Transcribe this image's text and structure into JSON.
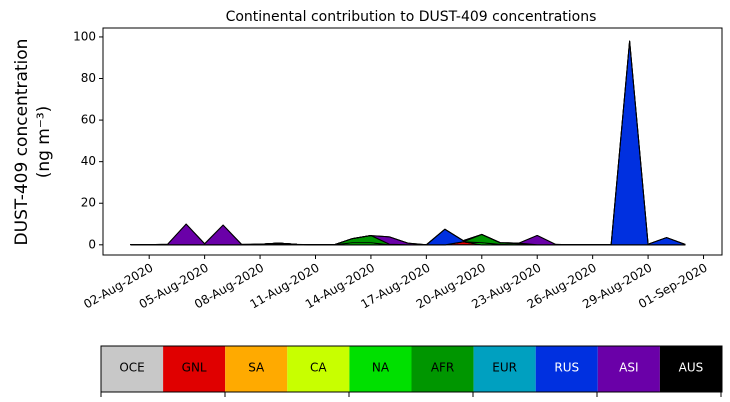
{
  "chart_data": {
    "type": "stackedarea",
    "title": "Continental contribution to DUST-409 concentrations",
    "y_label": [
      "DUST-409 concentration",
      "(ng m⁻³)"
    ],
    "x": [
      "2020-08-01",
      "2020-08-02",
      "2020-08-03",
      "2020-08-04",
      "2020-08-05",
      "2020-08-06",
      "2020-08-07",
      "2020-08-08",
      "2020-08-09",
      "2020-08-10",
      "2020-08-11",
      "2020-08-12",
      "2020-08-13",
      "2020-08-14",
      "2020-08-15",
      "2020-08-16",
      "2020-08-17",
      "2020-08-18",
      "2020-08-19",
      "2020-08-20",
      "2020-08-21",
      "2020-08-22",
      "2020-08-23",
      "2020-08-24",
      "2020-08-25",
      "2020-08-26",
      "2020-08-27",
      "2020-08-28",
      "2020-08-29",
      "2020-08-30",
      "2020-08-31"
    ],
    "xlim": [
      "2020-07-30T12:00",
      "2020-09-02"
    ],
    "xticks": [
      {
        "value": "2020-08-02",
        "label": "02-Aug-2020"
      },
      {
        "value": "2020-08-05",
        "label": "05-Aug-2020"
      },
      {
        "value": "2020-08-08",
        "label": "08-Aug-2020"
      },
      {
        "value": "2020-08-11",
        "label": "11-Aug-2020"
      },
      {
        "value": "2020-08-14",
        "label": "14-Aug-2020"
      },
      {
        "value": "2020-08-17",
        "label": "17-Aug-2020"
      },
      {
        "value": "2020-08-20",
        "label": "20-Aug-2020"
      },
      {
        "value": "2020-08-23",
        "label": "23-Aug-2020"
      },
      {
        "value": "2020-08-26",
        "label": "26-Aug-2020"
      },
      {
        "value": "2020-08-29",
        "label": "29-Aug-2020"
      },
      {
        "value": "2020-09-01",
        "label": "01-Sep-2020"
      }
    ],
    "ylim": [
      -4.9,
      104.3
    ],
    "yticks": [
      0,
      20,
      40,
      60,
      80,
      100
    ],
    "series": [
      {
        "name": "OCE",
        "color": "#c8c8c8",
        "values": [
          0.1,
          0.1,
          0,
          0,
          0,
          0,
          0,
          0,
          0,
          0,
          0,
          0,
          0,
          0,
          0,
          0,
          0,
          0,
          0,
          0,
          0,
          0,
          0,
          0,
          0,
          0,
          0,
          0,
          0,
          0,
          0
        ]
      },
      {
        "name": "GNL",
        "color": "#e00000",
        "values": [
          0,
          0,
          0,
          0,
          0,
          0,
          0,
          0,
          0,
          0,
          0,
          0,
          0,
          0,
          0,
          0,
          0,
          0,
          1.5,
          0,
          0,
          0,
          0,
          0,
          0,
          0,
          0,
          0,
          0,
          0,
          0
        ]
      },
      {
        "name": "SA",
        "color": "#ffaa00",
        "values": [
          0,
          0,
          0,
          0,
          0,
          0,
          0,
          0,
          0.3,
          0.2,
          0,
          0,
          0,
          0,
          0,
          0,
          0,
          0,
          0,
          0,
          0,
          0,
          0,
          0,
          0,
          0,
          0,
          0,
          0,
          0,
          0
        ]
      },
      {
        "name": "CA",
        "color": "#c8ff00",
        "values": [
          0,
          0,
          0,
          0,
          0,
          0,
          0,
          0.3,
          0.5,
          0,
          0,
          0,
          0,
          0,
          0,
          0,
          0,
          0,
          0,
          0,
          0,
          0,
          0,
          0,
          0,
          0,
          0,
          0,
          0,
          0,
          0
        ]
      },
      {
        "name": "NA",
        "color": "#00e000",
        "values": [
          0,
          0,
          0,
          0,
          0,
          0,
          0,
          0,
          0,
          0,
          0,
          0,
          1,
          1,
          0,
          0,
          0,
          0,
          0,
          1,
          0.2,
          0,
          0,
          0,
          0,
          0,
          0,
          0,
          0,
          0,
          0
        ]
      },
      {
        "name": "AFR",
        "color": "#009600",
        "values": [
          0,
          0,
          0,
          0,
          0,
          0,
          0,
          0,
          0,
          0,
          0,
          0,
          2,
          3.5,
          0.3,
          0,
          0,
          0,
          0,
          4,
          0.8,
          0.5,
          0,
          0,
          0,
          0,
          0,
          0,
          0,
          0,
          0
        ]
      },
      {
        "name": "EUR",
        "color": "#00a0c0",
        "values": [
          0,
          0,
          0,
          0,
          0,
          0,
          0,
          0,
          0,
          0,
          0,
          0,
          0,
          0,
          0,
          0,
          0,
          0,
          0,
          0,
          0,
          0.3,
          0,
          0,
          0,
          0,
          0,
          0,
          0,
          0,
          0
        ]
      },
      {
        "name": "RUS",
        "color": "#0030e0",
        "values": [
          0,
          0,
          0,
          0,
          0,
          0,
          0,
          0,
          0,
          0,
          0,
          0,
          0,
          0,
          0,
          0,
          0,
          7.5,
          0.5,
          0,
          0,
          0,
          0,
          0,
          0,
          0,
          0,
          98,
          0.3,
          3.5,
          0.2
        ]
      },
      {
        "name": "ASI",
        "color": "#6a00a8",
        "values": [
          0,
          0,
          0.3,
          10,
          0.5,
          9.5,
          0.2,
          0,
          0,
          0,
          0,
          0,
          0,
          0,
          3.5,
          0.8,
          0,
          0,
          0,
          0,
          0,
          0,
          4.5,
          0.2,
          0,
          0,
          0,
          0,
          0,
          0,
          0
        ]
      },
      {
        "name": "AUS",
        "color": "#000000",
        "values": [
          0,
          0,
          0,
          0,
          0,
          0,
          0,
          0,
          0,
          0,
          0,
          0,
          0,
          0,
          0,
          0,
          0,
          0,
          0,
          0,
          0,
          0,
          0,
          0,
          0,
          0,
          0,
          0,
          0,
          0,
          0
        ]
      }
    ]
  }
}
